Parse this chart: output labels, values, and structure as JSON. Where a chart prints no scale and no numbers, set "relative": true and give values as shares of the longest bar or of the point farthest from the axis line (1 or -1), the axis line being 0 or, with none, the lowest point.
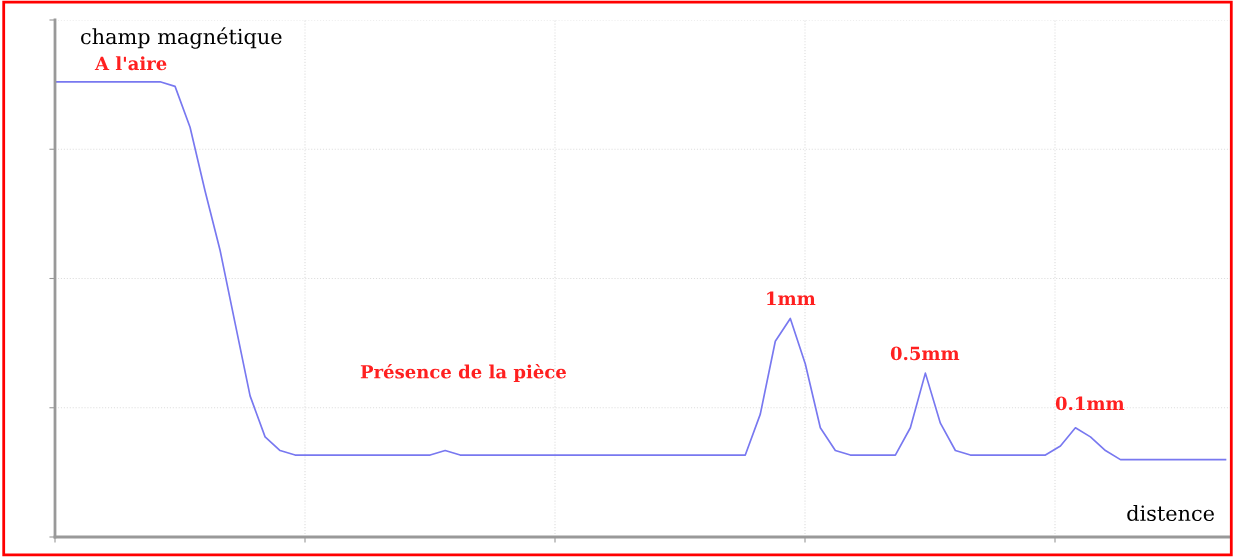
{
  "chart_data": {
    "type": "line",
    "relative": true,
    "ylabel": "champ magnétique",
    "xlabel": "distence",
    "categories": [
      null,
      null,
      null,
      null,
      null,
      null,
      null,
      null,
      null,
      null,
      null,
      null,
      null,
      null,
      null,
      null,
      null,
      null,
      null,
      null,
      null,
      null,
      null,
      null,
      null,
      null,
      null,
      null,
      null,
      null,
      null,
      null,
      null,
      null,
      null,
      null,
      null,
      null,
      null,
      null,
      null,
      null,
      null,
      null,
      null,
      null,
      null,
      null,
      null,
      null,
      null,
      null,
      null,
      null,
      null,
      null,
      null,
      null,
      null,
      null,
      null,
      null,
      null,
      null,
      null,
      null,
      null,
      null,
      null,
      null,
      null,
      null,
      null,
      null,
      null,
      null,
      null,
      null,
      null
    ],
    "series": [
      {
        "color": "#7878f0",
        "values": [
          1.0,
          1.0,
          1.0,
          1.0,
          1.0,
          1.0,
          1.0,
          1.0,
          0.99,
          0.9,
          0.76,
          0.63,
          0.47,
          0.31,
          0.22,
          0.19,
          0.18,
          0.18,
          0.18,
          0.18,
          0.18,
          0.18,
          0.18,
          0.18,
          0.18,
          0.18,
          0.19,
          0.18,
          0.18,
          0.18,
          0.18,
          0.18,
          0.18,
          0.18,
          0.18,
          0.18,
          0.18,
          0.18,
          0.18,
          0.18,
          0.18,
          0.18,
          0.18,
          0.18,
          0.18,
          0.18,
          0.18,
          0.27,
          0.43,
          0.48,
          0.38,
          0.24,
          0.19,
          0.18,
          0.18,
          0.18,
          0.18,
          0.24,
          0.36,
          0.25,
          0.19,
          0.18,
          0.18,
          0.18,
          0.18,
          0.18,
          0.18,
          0.2,
          0.24,
          0.22,
          0.19,
          0.17,
          0.17,
          0.17,
          0.17,
          0.17,
          0.17,
          0.17,
          0.17
        ]
      }
    ],
    "annotations": [
      "A l'aire",
      "Présence de la pièce",
      "1mm",
      "0.5mm",
      "0.1mm"
    ],
    "grid": true,
    "marker": "none",
    "line_style": "solid"
  }
}
